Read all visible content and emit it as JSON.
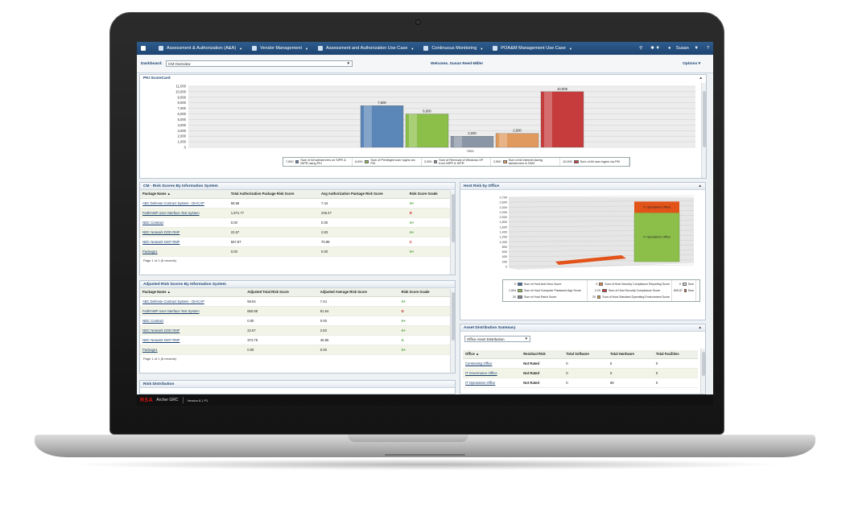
{
  "nav": {
    "items": [
      {
        "label": "Assessment & Authorization (A&A)"
      },
      {
        "label": "Vendor Management"
      },
      {
        "label": "Assessment and Authorization Use Case"
      },
      {
        "label": "Continuous Monitoring"
      },
      {
        "label": "POA&M Management Use Case"
      }
    ],
    "user": "Susan"
  },
  "dashboard": {
    "label": "Dashboard:",
    "selected": "CM Overview",
    "welcome": "Welcome, Susan Reed-Miller",
    "options": "Options ▾"
  },
  "pki": {
    "title": "PKI ScoreCard",
    "chart_data": {
      "type": "bar",
      "title": "PKI ScoreCard",
      "ylim": [
        0,
        11000
      ],
      "yticks": [
        "11,000",
        "10,000",
        "9,000",
        "8,000",
        "7,000",
        "6,000",
        "5,000",
        "4,000",
        "3,000",
        "2,000",
        "1,000",
        "0"
      ],
      "series": [
        {
          "name": "Sum of All webservers on SIPR & NIPR using PKI",
          "value": 7500,
          "label": "7,500",
          "color": "#5b86b8"
        },
        {
          "name": "Sum of Privileged user logins via PKI",
          "value": 6000,
          "label": "6,000",
          "color": "#8cbf4a"
        },
        {
          "name": "Sum of Removal of Windows XP from NIPR & SIPR",
          "value": 2000,
          "label": "2,000",
          "color": "#8a96a6"
        },
        {
          "name": "Sum of All internet-facing webservers in DMZ",
          "value": 2500,
          "label": "2,500",
          "color": "#e09a5e"
        },
        {
          "name": "Sum of All user logins via PKI",
          "value": 10005,
          "label": "10,005",
          "color": "#c63c3c"
        }
      ],
      "xlabel": "7503",
      "legend": [
        {
          "value": "7,500",
          "text": "Sum of All webservers on SIPR & NIPR using PKI"
        },
        {
          "value": "6,000",
          "text": "Sum of Privileged user logins via PKI"
        },
        {
          "value": "2,000",
          "text": "Sum of Removal of Windows XP from NIPR & SIPR"
        },
        {
          "value": "2,500",
          "text": "Sum of All internet-facing webservers in DMZ"
        },
        {
          "value": "10,005",
          "text": "Sum of All user logins via PKI"
        }
      ]
    }
  },
  "cm_risk": {
    "title": "CM - Risk Scores By Information System",
    "headers": [
      "Package Name ▲",
      "Total Authorization Package Risk Score",
      "Avg Authorization Package Risk Score",
      "Risk Score Grade"
    ],
    "rows": [
      [
        "ABC Defense Contract System - DIACAP",
        "58.56",
        "7.44",
        "A+"
      ],
      [
        "FedRAMP User Interface Test System",
        "1,971.77",
        "246.47",
        "D"
      ],
      [
        "NDC Contract",
        "0.00",
        "0.00",
        "A+"
      ],
      [
        "NDC Network DOD RMF",
        "22.67",
        "2.83",
        "A+"
      ],
      [
        "NDC Network NIST RMF",
        "567.87",
        "70.98",
        "C"
      ],
      [
        "Package1",
        "0.00",
        "0.00",
        "A+"
      ]
    ],
    "pager": "Page 1 of 1 (6 records)"
  },
  "adj_risk": {
    "title": "Adjusted Risk Scores By Information System",
    "headers": [
      "Package Name ▲",
      "Adjusted Total Risk Score",
      "Adjusted Average Risk Score",
      "Risk Score Grade"
    ],
    "rows": [
      [
        "ABC Defense Contract System - DIACAP",
        "59.54",
        "7.44",
        "A+"
      ],
      [
        "FedRAMP User Interface Test System",
        "650.88",
        "81.54",
        "D"
      ],
      [
        "NDC Contract",
        "0.00",
        "0.00",
        "A+"
      ],
      [
        "NDC Network DOD RMF",
        "22.67",
        "2.83",
        "A+"
      ],
      [
        "NDC Network NIST RMF",
        "374.79",
        "46.85",
        "A"
      ],
      [
        "Package1",
        "0.00",
        "0.00",
        "A+"
      ]
    ],
    "pager": "Page 1 of 1 (6 records)"
  },
  "risk_dist": {
    "title": "Risk Distribution"
  },
  "host_risk": {
    "title": "Host Risk by Office",
    "chart_data": {
      "type": "bar",
      "title": "Host Risk by Office",
      "ylim": [
        0,
        2700
      ],
      "yticks": [
        "2,700",
        "2,600",
        "2,400",
        "2,200",
        "2,000",
        "1,800",
        "1,600",
        "1,400",
        "1,200",
        "1,000",
        "800",
        "600",
        "400",
        "200",
        "0"
      ],
      "categories": [
        "",
        "IT Operations Office"
      ],
      "series": [
        {
          "name": "Sum of Host Anti-Virus Score",
          "value": 0
        },
        {
          "name": "Sum of Host Computer Password Age Score",
          "value": 1904,
          "label": "IT Operations Office"
        },
        {
          "name": "Sum of Host Patch Score",
          "value": 30
        },
        {
          "name": "Sum of Host Security Compliance Reporting Score",
          "value": 0
        },
        {
          "name": "Sum of Host Security Compliance Score",
          "value": 2.29
        },
        {
          "name": "Sum of Host Standard Operating Environment Score",
          "value": 20
        }
      ],
      "legend": [
        {
          "value": "0",
          "text": "Sum of Host Anti-Virus Score",
          "color": "#3a6bb0"
        },
        {
          "value": "1,904",
          "text": "Sum of Host Computer Password Age Score",
          "color": "#8cbf4a"
        },
        {
          "value": "30",
          "text": "Sum of Host Patch Score",
          "color": "#7a8796"
        },
        {
          "value": "0",
          "text": "Sum of Host Security Compliance Reporting Score",
          "color": "#e08a4a"
        },
        {
          "value": "2.29",
          "text": "Sum of Host Security Compliance Score",
          "color": "#c63c3c"
        },
        {
          "value": "20",
          "text": "Sum of Host Standard Operating Environment Score",
          "color": "#e0a030"
        },
        {
          "value": "0",
          "text": "Sum",
          "color": "#ddd"
        },
        {
          "value": "605.57",
          "text": "Sum",
          "color": "#e2531a"
        }
      ],
      "bar_label_top": "IT Operations Office",
      "bar_label_mid": "IT Operations Office"
    }
  },
  "asset": {
    "title": "Asset Distribution Summary",
    "select": "Office Asset Distribution",
    "headers": [
      "Office ▲",
      "Residual Risk",
      "Total Software",
      "Total Hardware",
      "Total Facilities"
    ],
    "rows": [
      [
        "Contracting Office",
        "Not Rated",
        "0",
        "6",
        "0"
      ],
      [
        "IT Governance Office",
        "Not Rated",
        "0",
        "0",
        "0"
      ],
      [
        "IT Operations Office",
        "Not Rated",
        "0",
        "89",
        "0"
      ]
    ]
  },
  "footer": {
    "brand": "RSA",
    "product": "Archer GRC",
    "version": "Version 6.1 P1"
  }
}
